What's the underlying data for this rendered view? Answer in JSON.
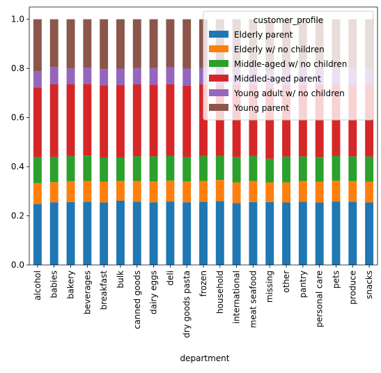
{
  "chart_data": {
    "type": "bar",
    "stacked": true,
    "xlabel": "department",
    "ylabel": "",
    "ylim": [
      0,
      1.05
    ],
    "yticks": [
      0.0,
      0.2,
      0.4,
      0.6,
      0.8,
      1.0
    ],
    "ytick_labels": [
      "0.0",
      "0.2",
      "0.4",
      "0.6",
      "0.8",
      "1.0"
    ],
    "grid": false,
    "legend_title": "customer_profile",
    "legend_position": "top-right",
    "categories": [
      "alcohol",
      "babies",
      "bakery",
      "beverages",
      "breakfast",
      "bulk",
      "canned goods",
      "dairy eggs",
      "deli",
      "dry goods pasta",
      "frozen",
      "household",
      "international",
      "meat seafood",
      "missing",
      "other",
      "pantry",
      "personal care",
      "pets",
      "produce",
      "snacks"
    ],
    "series": [
      {
        "name": "Elderly parent",
        "color": "#1f77b4",
        "values": [
          0.248,
          0.255,
          0.256,
          0.257,
          0.254,
          0.262,
          0.257,
          0.255,
          0.258,
          0.255,
          0.257,
          0.26,
          0.252,
          0.256,
          0.256,
          0.254,
          0.257,
          0.254,
          0.258,
          0.257,
          0.254
        ]
      },
      {
        "name": "Elderly w/ no children",
        "color": "#ff7f0e",
        "values": [
          0.085,
          0.082,
          0.085,
          0.085,
          0.085,
          0.08,
          0.085,
          0.085,
          0.085,
          0.085,
          0.085,
          0.086,
          0.084,
          0.086,
          0.08,
          0.082,
          0.085,
          0.085,
          0.085,
          0.084,
          0.085
        ]
      },
      {
        "name": "Middle-aged w/ no children",
        "color": "#2ca02c",
        "values": [
          0.105,
          0.103,
          0.102,
          0.103,
          0.098,
          0.095,
          0.1,
          0.102,
          0.101,
          0.098,
          0.101,
          0.097,
          0.103,
          0.101,
          0.096,
          0.105,
          0.1,
          0.1,
          0.101,
          0.101,
          0.102
        ]
      },
      {
        "name": "Middled-aged parent",
        "color": "#d62728",
        "values": [
          0.285,
          0.295,
          0.292,
          0.292,
          0.294,
          0.295,
          0.293,
          0.292,
          0.292,
          0.292,
          0.292,
          0.29,
          0.294,
          0.289,
          0.29,
          0.29,
          0.29,
          0.294,
          0.291,
          0.292,
          0.293
        ]
      },
      {
        "name": "Young adult w/ no children",
        "color": "#9467bd",
        "values": [
          0.065,
          0.07,
          0.065,
          0.066,
          0.066,
          0.067,
          0.066,
          0.068,
          0.068,
          0.069,
          0.067,
          0.068,
          0.067,
          0.068,
          0.068,
          0.066,
          0.068,
          0.068,
          0.067,
          0.066,
          0.066
        ]
      },
      {
        "name": "Young parent",
        "color": "#8c564b",
        "values": [
          0.212,
          0.195,
          0.2,
          0.197,
          0.203,
          0.201,
          0.199,
          0.198,
          0.196,
          0.201,
          0.198,
          0.199,
          0.2,
          0.2,
          0.21,
          0.203,
          0.2,
          0.199,
          0.198,
          0.2,
          0.2
        ]
      }
    ]
  }
}
